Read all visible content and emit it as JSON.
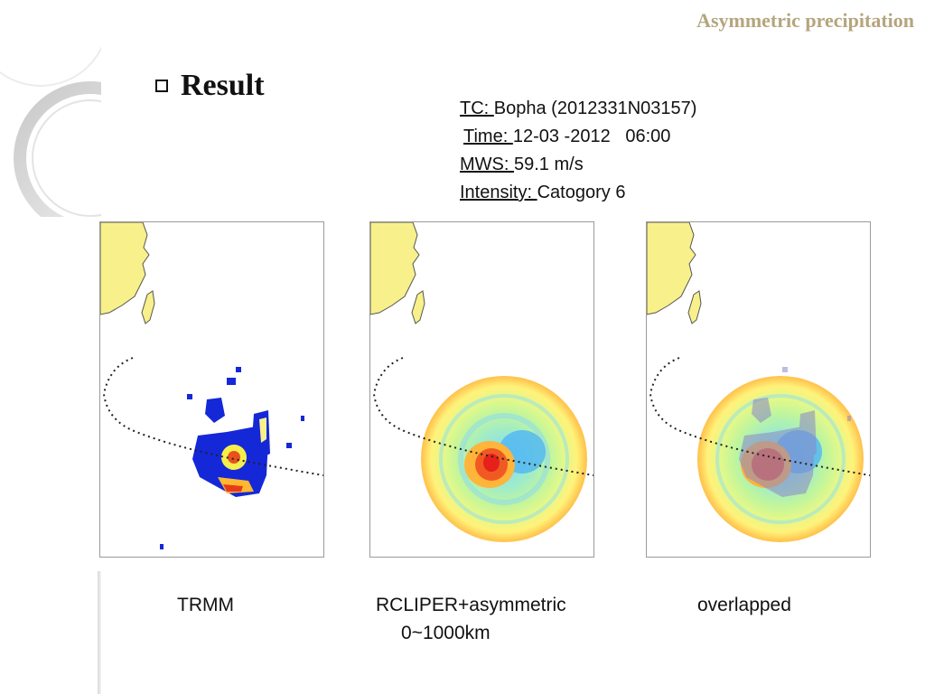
{
  "slide": {
    "header": "Asymmetric precipitation",
    "section_title": "Result"
  },
  "tc_info": {
    "tc_label": "TC: ",
    "tc_value": "Bopha (2012331N03157)",
    "time_label": "Time: ",
    "time_value": "12-03 -2012   06:00",
    "mws_label": "MWS: ",
    "mws_value": "59.1 m/s",
    "intensity_label": "Intensity: ",
    "intensity_value": "Catogory 6"
  },
  "panels": [
    {
      "caption_line1": "TRMM",
      "caption_line2": ""
    },
    {
      "caption_line1": "RCLIPER+asymmetric",
      "caption_line2": "0~1000km"
    },
    {
      "caption_line1": "overlapped",
      "caption_line2": ""
    }
  ],
  "colors": {
    "header": "#b5a57d",
    "land": "#f8f08a",
    "trmm_rain": "#1428d8"
  }
}
